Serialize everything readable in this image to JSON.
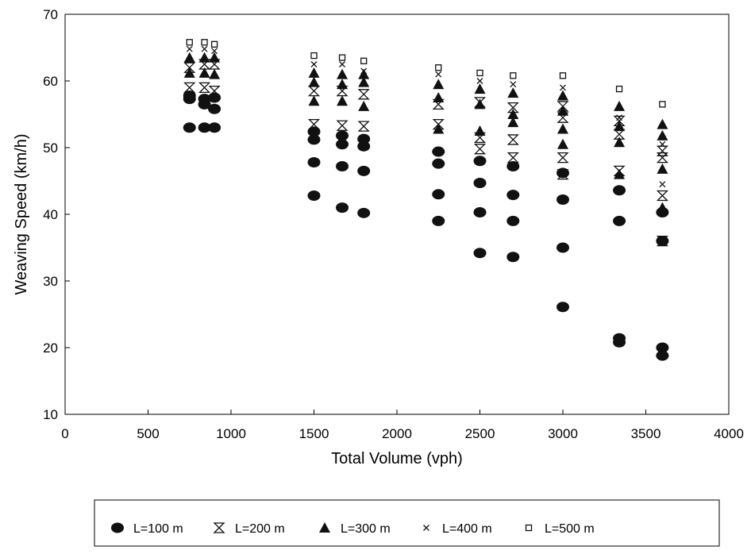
{
  "chart_data": {
    "type": "scatter",
    "title": "",
    "xlabel": "Total Volume (vph)",
    "ylabel": "Weaving Speed (km/h)",
    "xlim": [
      0,
      4000
    ],
    "ylim": [
      10,
      70
    ],
    "x_ticks": [
      "0",
      "500",
      "1000",
      "1500",
      "2000",
      "2500",
      "3000",
      "3500",
      "4000"
    ],
    "y_ticks": [
      "10",
      "20",
      "30",
      "40",
      "50",
      "60",
      "70"
    ],
    "grid": false,
    "legend_position": "bottom",
    "series": [
      {
        "name": "L=100 m",
        "marker": "filled-circle",
        "points": [
          [
            750,
            53
          ],
          [
            750,
            57.3
          ],
          [
            750,
            57.8
          ],
          [
            840,
            53
          ],
          [
            840,
            56.5
          ],
          [
            840,
            57.3
          ],
          [
            900,
            53
          ],
          [
            900,
            55.8
          ],
          [
            900,
            57.5
          ],
          [
            1500,
            42.8
          ],
          [
            1500,
            47.8
          ],
          [
            1500,
            51.2
          ],
          [
            1500,
            52.4
          ],
          [
            1670,
            41
          ],
          [
            1670,
            47.2
          ],
          [
            1670,
            50.5
          ],
          [
            1670,
            51.8
          ],
          [
            1800,
            40.2
          ],
          [
            1800,
            46.5
          ],
          [
            1800,
            50.2
          ],
          [
            1800,
            51.3
          ],
          [
            2250,
            39
          ],
          [
            2250,
            43
          ],
          [
            2250,
            47.6
          ],
          [
            2250,
            49.4
          ],
          [
            2500,
            34.2
          ],
          [
            2500,
            40.3
          ],
          [
            2500,
            44.7
          ],
          [
            2500,
            48
          ],
          [
            2700,
            33.6
          ],
          [
            2700,
            39
          ],
          [
            2700,
            42.9
          ],
          [
            2700,
            47.2
          ],
          [
            3000,
            26.1
          ],
          [
            3000,
            35
          ],
          [
            3000,
            42.2
          ],
          [
            3000,
            46.2
          ],
          [
            3340,
            20.8
          ],
          [
            3340,
            21.4
          ],
          [
            3340,
            39
          ],
          [
            3340,
            43.6
          ],
          [
            3600,
            18.8
          ],
          [
            3600,
            20
          ],
          [
            3600,
            36
          ],
          [
            3600,
            40.3
          ]
        ]
      },
      {
        "name": "L=200 m",
        "marker": "hourglass",
        "points": [
          [
            750,
            59
          ],
          [
            750,
            62
          ],
          [
            840,
            59
          ],
          [
            840,
            62.5
          ],
          [
            900,
            58.5
          ],
          [
            900,
            62.5
          ],
          [
            1500,
            53.5
          ],
          [
            1500,
            58.5
          ],
          [
            1670,
            53.3
          ],
          [
            1670,
            58.5
          ],
          [
            1800,
            53.2
          ],
          [
            1800,
            58
          ],
          [
            2250,
            53.5
          ],
          [
            2250,
            56.5
          ],
          [
            2500,
            49.8
          ],
          [
            2500,
            51.5
          ],
          [
            2500,
            56.8
          ],
          [
            2700,
            48.5
          ],
          [
            2700,
            51.2
          ],
          [
            2700,
            56
          ],
          [
            3000,
            46
          ],
          [
            3000,
            48.5
          ],
          [
            3000,
            54.5
          ],
          [
            3000,
            56.2
          ],
          [
            3340,
            46.5
          ],
          [
            3340,
            52
          ],
          [
            3340,
            54
          ],
          [
            3600,
            42.8
          ],
          [
            3600,
            48.5
          ],
          [
            3600,
            49.5
          ],
          [
            3600,
            36
          ]
        ]
      },
      {
        "name": "L=300 m",
        "marker": "filled-triangle",
        "points": [
          [
            750,
            61.2
          ],
          [
            750,
            63.5
          ],
          [
            840,
            61.2
          ],
          [
            840,
            63.5
          ],
          [
            900,
            61
          ],
          [
            900,
            63.5
          ],
          [
            1500,
            57
          ],
          [
            1500,
            59.8
          ],
          [
            1500,
            61.2
          ],
          [
            1670,
            57
          ],
          [
            1670,
            59.5
          ],
          [
            1670,
            61
          ],
          [
            1800,
            56.2
          ],
          [
            1800,
            59.8
          ],
          [
            1800,
            61
          ],
          [
            2250,
            52.8
          ],
          [
            2250,
            57.5
          ],
          [
            2250,
            59.5
          ],
          [
            2500,
            52.5
          ],
          [
            2500,
            56.5
          ],
          [
            2500,
            58.8
          ],
          [
            2700,
            53.8
          ],
          [
            2700,
            55
          ],
          [
            2700,
            58.2
          ],
          [
            3000,
            50.5
          ],
          [
            3000,
            52.8
          ],
          [
            3000,
            55.5
          ],
          [
            3000,
            57.8
          ],
          [
            3340,
            46
          ],
          [
            3340,
            50.8
          ],
          [
            3340,
            53.2
          ],
          [
            3340,
            56.2
          ],
          [
            3600,
            41
          ],
          [
            3600,
            46.8
          ],
          [
            3600,
            51.8
          ],
          [
            3600,
            53.5
          ]
        ]
      },
      {
        "name": "L=400 m",
        "marker": "x",
        "points": [
          [
            750,
            64.8
          ],
          [
            840,
            64.8
          ],
          [
            900,
            64.5
          ],
          [
            1500,
            62.5
          ],
          [
            1670,
            62.5
          ],
          [
            1800,
            61.5
          ],
          [
            2250,
            61
          ],
          [
            2500,
            60
          ],
          [
            2700,
            59.5
          ],
          [
            3000,
            59
          ],
          [
            3340,
            54.5
          ],
          [
            3600,
            44.5
          ],
          [
            3600,
            50.5
          ]
        ]
      },
      {
        "name": "L=500 m",
        "marker": "open-square",
        "points": [
          [
            750,
            65.8
          ],
          [
            840,
            65.8
          ],
          [
            900,
            65.5
          ],
          [
            1500,
            63.8
          ],
          [
            1670,
            63.5
          ],
          [
            1800,
            63
          ],
          [
            2250,
            62
          ],
          [
            2500,
            61.2
          ],
          [
            2700,
            60.8
          ],
          [
            3000,
            60.8
          ],
          [
            3340,
            58.8
          ],
          [
            3600,
            56.5
          ]
        ]
      }
    ]
  }
}
